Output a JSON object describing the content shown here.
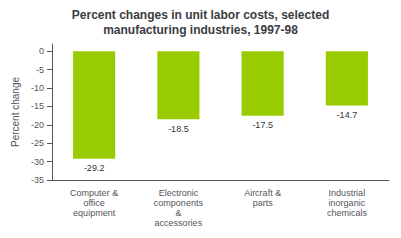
{
  "chart_data": {
    "type": "bar",
    "title": "Percent changes in unit labor costs, selected\nmanufacturing industries, 1997-98",
    "categories": [
      "Computer &\noffice\nequipment",
      "Electronic\ncomponents\n&\naccessories",
      "Aircraft &\nparts",
      "Industrial\ninorganic\nchemicals"
    ],
    "values": [
      -29.2,
      -18.5,
      -17.5,
      -14.7
    ],
    "color": "#99cc00",
    "ylabel": "Percent change",
    "ylim": [
      -35,
      2
    ],
    "yticks": [
      0,
      -5,
      -10,
      -15,
      -20,
      -25,
      -30,
      -35
    ],
    "data_labels": true,
    "grid": false
  }
}
